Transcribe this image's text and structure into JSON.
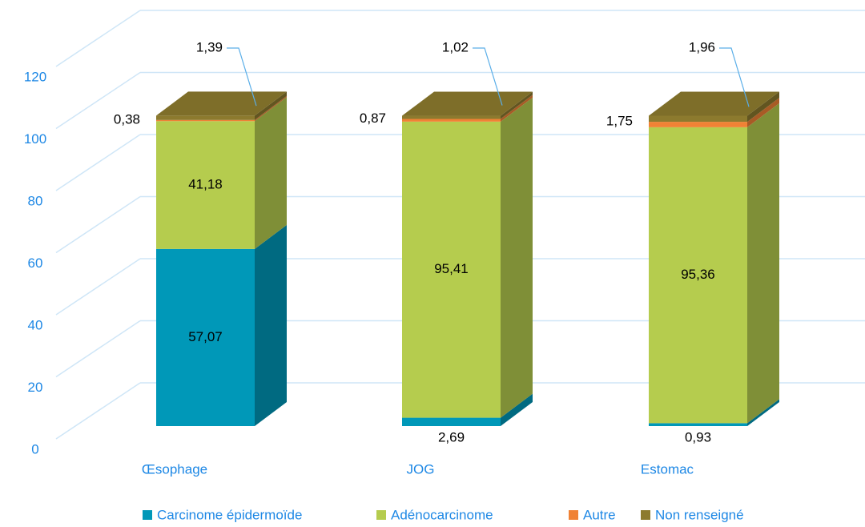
{
  "chart_data": {
    "type": "bar3d_stacked",
    "categories": [
      "Œsophage",
      "JOG",
      "Estomac"
    ],
    "series": [
      {
        "name": "Carcinome épidermoïde",
        "color": "#0098b8",
        "values": [
          57.07,
          2.69,
          0.93
        ],
        "value_labels": [
          "57,07",
          "2,69",
          "0,93"
        ]
      },
      {
        "name": "Adénocarcinome",
        "color": "#b5cc4e",
        "values": [
          41.18,
          95.41,
          95.36
        ],
        "value_labels": [
          "41,18",
          "95,41",
          "95,36"
        ]
      },
      {
        "name": "Autre",
        "color": "#f08235",
        "values": [
          0.38,
          0.87,
          1.75
        ],
        "value_labels": [
          "0,38",
          "0,87",
          "1,75"
        ]
      },
      {
        "name": "Non renseigné",
        "color": "#8c7a2e",
        "values": [
          1.39,
          1.02,
          1.96
        ],
        "value_labels": [
          "1,39",
          "1,02",
          "1,96"
        ]
      }
    ],
    "ylim": [
      0,
      120
    ],
    "yticks": [
      0,
      20,
      40,
      60,
      80,
      100,
      120
    ],
    "grid": true,
    "legend": "bottom"
  }
}
